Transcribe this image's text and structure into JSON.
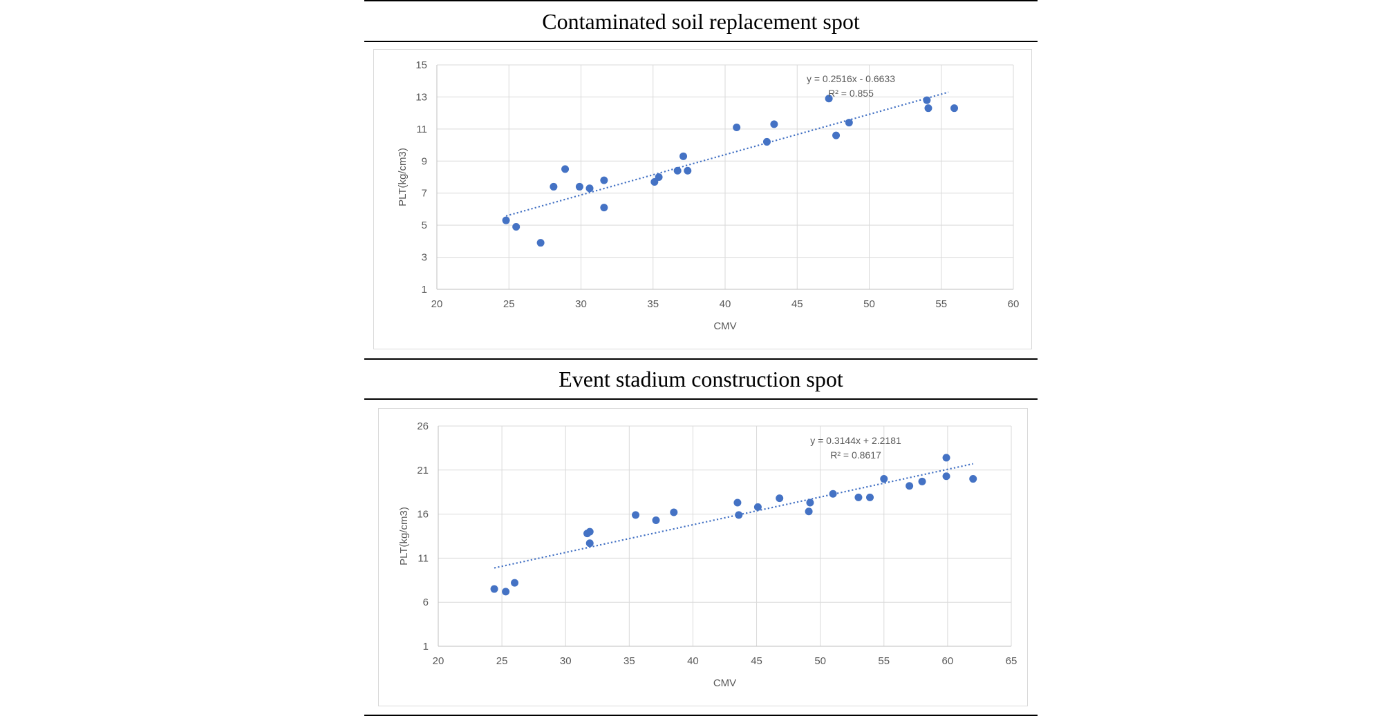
{
  "chart_data": [
    {
      "type": "scatter",
      "title": "Contaminated soil replacement spot",
      "xlabel": "CMV",
      "ylabel": "PLT(kg/cm3)",
      "xlim": [
        20,
        60
      ],
      "ylim": [
        1,
        15
      ],
      "xticks": [
        20,
        25,
        30,
        35,
        40,
        45,
        50,
        55,
        60
      ],
      "yticks": [
        1,
        3,
        5,
        7,
        9,
        11,
        13,
        15
      ],
      "grid": true,
      "series": [
        {
          "name": "PLT",
          "color": "#4472c4",
          "x": [
            24.8,
            25.5,
            27.2,
            28.1,
            28.9,
            29.9,
            30.6,
            31.6,
            31.6,
            35.1,
            35.4,
            36.7,
            37.1,
            37.4,
            40.8,
            42.9,
            43.4,
            47.2,
            47.7,
            48.6,
            54.0,
            54.1,
            55.9
          ],
          "y": [
            5.3,
            4.9,
            3.9,
            7.4,
            8.5,
            7.4,
            7.3,
            7.8,
            6.1,
            7.7,
            8.0,
            8.4,
            9.3,
            8.4,
            11.1,
            10.2,
            11.3,
            12.9,
            10.6,
            11.4,
            12.8,
            12.3,
            12.3
          ]
        }
      ],
      "trendline": {
        "type": "linear",
        "slope": 0.2516,
        "intercept": -0.6633,
        "x_range": [
          24.8,
          55.5
        ],
        "equation": "y = 0.2516x - 0.6633",
        "r2": "R² = 0.855",
        "color": "#4472c4"
      }
    },
    {
      "type": "scatter",
      "title": "Event stadium construction spot",
      "xlabel": "CMV",
      "ylabel": "PLT(kg/cm3)",
      "xlim": [
        20,
        65
      ],
      "ylim": [
        1,
        26
      ],
      "xticks": [
        20,
        25,
        30,
        35,
        40,
        45,
        50,
        55,
        60,
        65
      ],
      "yticks": [
        1,
        6,
        11,
        16,
        21,
        26
      ],
      "grid": true,
      "series": [
        {
          "name": "PLT",
          "color": "#4472c4",
          "x": [
            24.4,
            25.3,
            26.0,
            31.7,
            31.9,
            31.9,
            35.5,
            37.1,
            38.5,
            43.5,
            43.6,
            45.1,
            46.8,
            49.1,
            49.2,
            51.0,
            53.0,
            53.9,
            55.0,
            57.0,
            58.0,
            59.9,
            59.9,
            62.0
          ],
          "y": [
            7.5,
            7.2,
            8.2,
            13.8,
            14.0,
            12.7,
            15.9,
            15.3,
            16.2,
            17.3,
            15.9,
            16.8,
            17.8,
            16.3,
            17.3,
            18.3,
            17.9,
            17.9,
            20.0,
            19.2,
            19.7,
            22.4,
            20.3,
            20.0
          ]
        }
      ],
      "trendline": {
        "type": "linear",
        "slope": 0.3144,
        "intercept": 2.2181,
        "x_range": [
          24.4,
          62.0
        ],
        "equation": "y = 0.3144x + 2.2181",
        "r2": "R² = 0.8617",
        "color": "#4472c4"
      }
    }
  ]
}
